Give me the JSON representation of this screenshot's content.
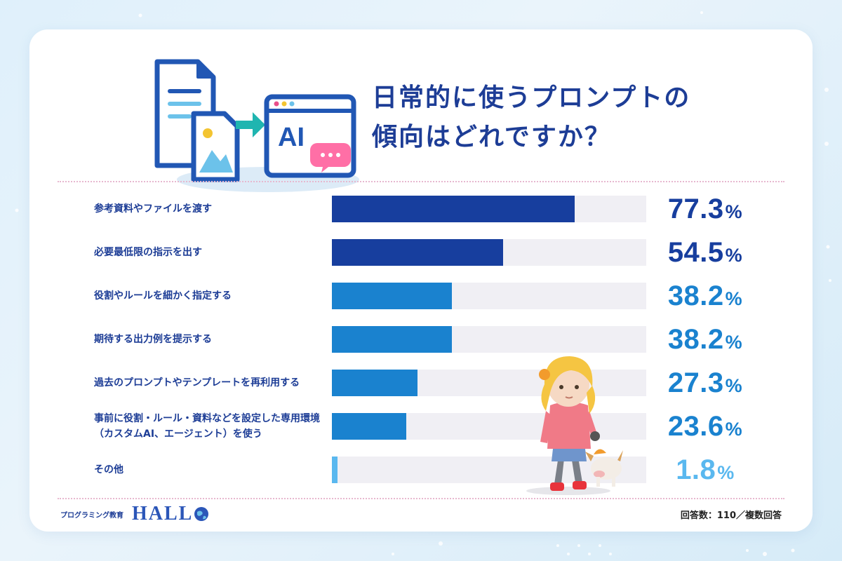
{
  "title": {
    "line1": "日常的に使うプロンプトの",
    "line2": "傾向はどれですか？"
  },
  "chart_data": {
    "type": "bar",
    "orientation": "horizontal",
    "categories": [
      "参考資料やファイルを渡す",
      "必要最低限の指示を出す",
      "役割やルールを細かく指定する",
      "期待する出力例を提示する",
      "過去のプロンプトやテンプレートを再利用する",
      "事前に役割・ルール・資料などを設定した専用環境\n（カスタムAI、エージェント）を使う",
      "その他"
    ],
    "values": [
      77.3,
      54.5,
      38.2,
      38.2,
      27.3,
      23.6,
      1.8
    ],
    "value_labels": [
      "77.3",
      "54.5",
      "38.2",
      "38.2",
      "27.3",
      "23.6",
      "1.8"
    ],
    "unit": "%",
    "xlim": [
      0,
      100
    ],
    "bar_colors": [
      "#173e9e",
      "#173e9e",
      "#1a82cf",
      "#1a82cf",
      "#1a82cf",
      "#1a82cf",
      "#5ab8ef"
    ],
    "label_colors": [
      "#173e9e",
      "#173e9e",
      "#1a82cf",
      "#1a82cf",
      "#1a82cf",
      "#1a82cf",
      "#5ab8ef"
    ],
    "track_color": "#f0eff4",
    "grid": false
  },
  "illustration": {
    "ai_label": "AI",
    "icons": [
      "document-icon",
      "image-icon",
      "arrow-right-icon",
      "ai-window-icon",
      "chat-bubble-icon"
    ]
  },
  "footer": {
    "brand_sub": "プログラミング教育",
    "brand_name": "HALL",
    "note": "回答数：110／複数回答"
  },
  "colors": {
    "title": "#1d3d96",
    "accent_teal": "#1fb5b0",
    "divider": "#e7b8cf"
  }
}
